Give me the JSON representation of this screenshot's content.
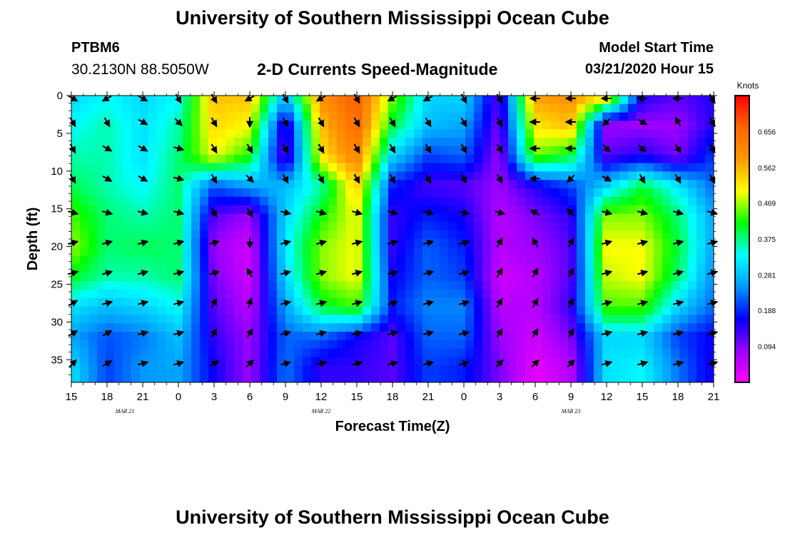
{
  "header": {
    "title": "University of Southern Mississippi Ocean Cube",
    "station": "PTBM6",
    "coordinates": "30.2130N 88.5050W",
    "subtitle": "2-D Currents Speed-Magnitude",
    "model_start_label": "Model Start Time",
    "model_start_value": "03/21/2020 Hour 15"
  },
  "footer": {
    "title": "University of Southern Mississippi Ocean Cube"
  },
  "chart_data": {
    "type": "heatmap",
    "title": "2-D Currents Speed-Magnitude",
    "xlabel": "Forecast Time(Z)",
    "ylabel": "Depth (ft)",
    "x_hours_since_start": [
      0,
      3,
      6,
      9,
      12,
      15,
      18,
      21,
      24,
      27,
      30,
      33,
      36,
      39,
      42,
      45,
      48,
      51,
      54
    ],
    "x_tick_labels": [
      "15",
      "18",
      "21",
      "0",
      "3",
      "6",
      "9",
      "12",
      "15",
      "18",
      "21",
      "0",
      "3",
      "6",
      "9",
      "12",
      "15",
      "18",
      "21"
    ],
    "date_labels": [
      {
        "text": "MAR  21",
        "hour": 4.5
      },
      {
        "text": "MAR  22",
        "hour": 21
      },
      {
        "text": "MAR  23",
        "hour": 42
      }
    ],
    "xlim": [
      0,
      54
    ],
    "ylim": [
      0,
      38
    ],
    "y_ticks": [
      0,
      5,
      10,
      15,
      20,
      25,
      30,
      35
    ],
    "y_inverted": true,
    "colorbar": {
      "unit": "Knots",
      "ticks": [
        0.094,
        0.188,
        0.281,
        0.375,
        0.469,
        0.562,
        0.656
      ],
      "range": [
        0.0,
        0.75
      ],
      "colors": [
        "#ff00ff",
        "#9900ff",
        "#0000ff",
        "#0099ff",
        "#00ffff",
        "#00ff00",
        "#ffff00",
        "#ff9900",
        "#ff6600",
        "#ff0000"
      ]
    },
    "speed_field": {
      "rows_depth_ft": [
        0,
        4,
        8,
        12,
        16,
        20,
        24,
        28,
        32,
        36
      ],
      "cols_hour": [
        0,
        3,
        6,
        9,
        12,
        15,
        18,
        21,
        24,
        27,
        30,
        33,
        36,
        39,
        42,
        45,
        48,
        51,
        54
      ],
      "values": [
        [
          0.3,
          0.33,
          0.3,
          0.33,
          0.55,
          0.55,
          0.28,
          0.6,
          0.68,
          0.46,
          0.3,
          0.3,
          0.12,
          0.58,
          0.6,
          0.55,
          0.15,
          0.12,
          0.15
        ],
        [
          0.33,
          0.36,
          0.31,
          0.36,
          0.53,
          0.5,
          0.12,
          0.55,
          0.66,
          0.4,
          0.28,
          0.26,
          0.1,
          0.52,
          0.55,
          0.08,
          0.08,
          0.08,
          0.15
        ],
        [
          0.36,
          0.36,
          0.31,
          0.38,
          0.5,
          0.42,
          0.1,
          0.52,
          0.62,
          0.3,
          0.2,
          0.22,
          0.08,
          0.45,
          0.4,
          0.12,
          0.15,
          0.1,
          0.2
        ],
        [
          0.39,
          0.36,
          0.33,
          0.38,
          0.21,
          0.26,
          0.28,
          0.36,
          0.54,
          0.18,
          0.13,
          0.12,
          0.08,
          0.15,
          0.2,
          0.3,
          0.4,
          0.32,
          0.22
        ],
        [
          0.44,
          0.38,
          0.36,
          0.38,
          0.12,
          0.08,
          0.3,
          0.42,
          0.5,
          0.14,
          0.18,
          0.16,
          0.06,
          0.1,
          0.14,
          0.46,
          0.46,
          0.38,
          0.26
        ],
        [
          0.47,
          0.38,
          0.39,
          0.38,
          0.08,
          0.04,
          0.32,
          0.46,
          0.5,
          0.14,
          0.22,
          0.18,
          0.06,
          0.08,
          0.12,
          0.5,
          0.5,
          0.4,
          0.26
        ],
        [
          0.41,
          0.36,
          0.36,
          0.38,
          0.1,
          0.04,
          0.3,
          0.46,
          0.5,
          0.16,
          0.22,
          0.2,
          0.04,
          0.06,
          0.12,
          0.48,
          0.5,
          0.38,
          0.24
        ],
        [
          0.31,
          0.28,
          0.3,
          0.33,
          0.12,
          0.06,
          0.26,
          0.4,
          0.44,
          0.18,
          0.24,
          0.24,
          0.06,
          0.06,
          0.14,
          0.44,
          0.44,
          0.3,
          0.22
        ],
        [
          0.26,
          0.21,
          0.23,
          0.28,
          0.14,
          0.08,
          0.22,
          0.22,
          0.16,
          0.12,
          0.22,
          0.22,
          0.08,
          0.04,
          0.1,
          0.3,
          0.3,
          0.2,
          0.16
        ],
        [
          0.31,
          0.2,
          0.25,
          0.26,
          0.16,
          0.08,
          0.23,
          0.14,
          0.14,
          0.12,
          0.2,
          0.18,
          0.1,
          0.02,
          0.06,
          0.31,
          0.33,
          0.23,
          0.15
        ]
      ]
    },
    "vectors": {
      "depths_ft": [
        0,
        3.5,
        7,
        11,
        15.5,
        19.5,
        23.5,
        27.5,
        31.5,
        35.5
      ],
      "hours": [
        0,
        3,
        6,
        9,
        12,
        15,
        18,
        21,
        24,
        27,
        30,
        33,
        36,
        39,
        42,
        45,
        48,
        51,
        54
      ],
      "direction_deg": [
        [
          330,
          210,
          330,
          300,
          300,
          210,
          300,
          210,
          300,
          210,
          210,
          300,
          300,
          180,
          180,
          180,
          180,
          180,
          300
        ],
        [
          300,
          300,
          330,
          315,
          300,
          270,
          300,
          300,
          300,
          300,
          300,
          300,
          300,
          180,
          180,
          225,
          330,
          120,
          300
        ],
        [
          300,
          330,
          330,
          345,
          300,
          300,
          300,
          300,
          300,
          300,
          300,
          300,
          300,
          180,
          180,
          315,
          315,
          300,
          300
        ],
        [
          300,
          330,
          330,
          345,
          300,
          315,
          300,
          300,
          300,
          300,
          300,
          300,
          300,
          180,
          225,
          330,
          300,
          300,
          300
        ],
        [
          345,
          345,
          345,
          345,
          300,
          300,
          345,
          345,
          345,
          345,
          345,
          345,
          345,
          150,
          135,
          345,
          345,
          345,
          345
        ],
        [
          15,
          15,
          15,
          15,
          15,
          270,
          15,
          15,
          15,
          15,
          15,
          15,
          60,
          120,
          60,
          15,
          15,
          15,
          15
        ],
        [
          15,
          15,
          15,
          15,
          15,
          120,
          15,
          15,
          15,
          15,
          15,
          15,
          60,
          60,
          60,
          15,
          15,
          15,
          15
        ],
        [
          30,
          15,
          15,
          15,
          60,
          75,
          15,
          15,
          15,
          15,
          15,
          15,
          60,
          60,
          60,
          15,
          15,
          15,
          15
        ],
        [
          30,
          30,
          15,
          15,
          60,
          60,
          15,
          15,
          15,
          15,
          15,
          15,
          60,
          60,
          60,
          15,
          15,
          15,
          15
        ],
        [
          45,
          30,
          15,
          15,
          30,
          45,
          15,
          15,
          15,
          15,
          15,
          15,
          45,
          45,
          45,
          15,
          15,
          15,
          15
        ]
      ]
    }
  }
}
